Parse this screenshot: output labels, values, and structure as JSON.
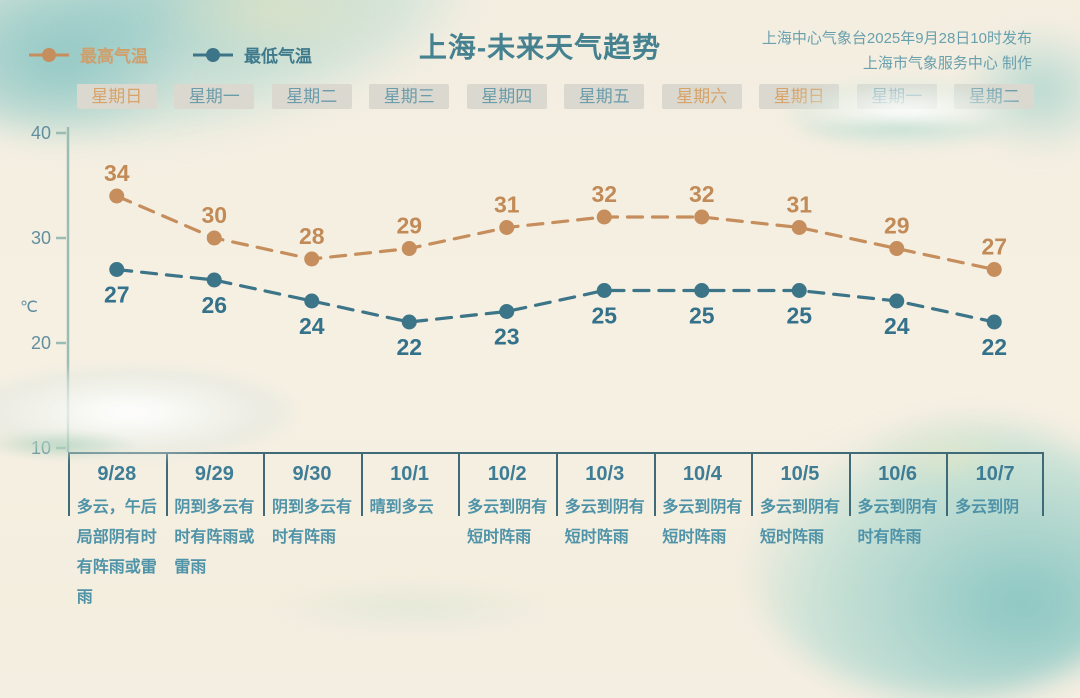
{
  "header": {
    "title": "上海-未来天气趋势",
    "publish_line1": "上海中心气象台2025年9月28日10时发布",
    "publish_line2": "上海市气象服务中心 制作"
  },
  "legend": {
    "high_label": "最高气温",
    "low_label": "最低气温"
  },
  "colors": {
    "high_line": "#c68e5c",
    "low_line": "#3c7488",
    "high_label": "#c18a57",
    "low_label": "#34718a",
    "axis": "#9bbcb2",
    "tick_text": "#628f9f",
    "weekend_text": "#d8a368",
    "weekday_text": "#6b9cab",
    "table_border": "#3f6b78",
    "background": "#f5efe2"
  },
  "days": [
    {
      "label": "星期日",
      "weekend": true
    },
    {
      "label": "星期一",
      "weekend": false
    },
    {
      "label": "星期二",
      "weekend": false
    },
    {
      "label": "星期三",
      "weekend": false
    },
    {
      "label": "星期四",
      "weekend": false
    },
    {
      "label": "星期五",
      "weekend": false
    },
    {
      "label": "星期六",
      "weekend": true
    },
    {
      "label": "星期日",
      "weekend": true
    },
    {
      "label": "星期一",
      "weekend": false
    },
    {
      "label": "星期二",
      "weekend": false
    }
  ],
  "chart_data": {
    "type": "line",
    "x": [
      "9/28",
      "9/29",
      "9/30",
      "10/1",
      "10/2",
      "10/3",
      "10/4",
      "10/5",
      "10/6",
      "10/7"
    ],
    "series": [
      {
        "name": "最高气温",
        "values": [
          34,
          30,
          28,
          29,
          31,
          32,
          32,
          31,
          29,
          27
        ]
      },
      {
        "name": "最低气温",
        "values": [
          27,
          26,
          24,
          22,
          23,
          25,
          25,
          25,
          24,
          22
        ]
      }
    ],
    "ylabel": "℃",
    "yticks": [
      40,
      30,
      20,
      10
    ],
    "ylim": [
      10,
      40
    ],
    "grid": false,
    "line_style": "dashed",
    "legend_position": "top-left",
    "title": "上海-未来天气趋势"
  },
  "table": {
    "dates": [
      "9/28",
      "9/29",
      "9/30",
      "10/1",
      "10/2",
      "10/3",
      "10/4",
      "10/5",
      "10/6",
      "10/7"
    ],
    "descriptions": [
      "多云，午后局部阴有时有阵雨或雷雨",
      "阴到多云有时有阵雨或雷雨",
      "阴到多云有时有阵雨",
      "晴到多云",
      "多云到阴有短时阵雨",
      "多云到阴有短时阵雨",
      "多云到阴有短时阵雨",
      "多云到阴有短时阵雨",
      "多云到阴有时有阵雨",
      "多云到阴"
    ]
  }
}
